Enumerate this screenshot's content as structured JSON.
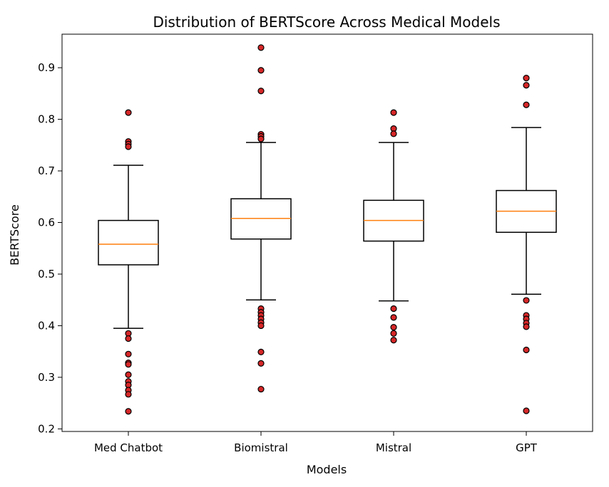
{
  "chart_data": {
    "type": "box",
    "title": "Distribution of BERTScore Across Medical Models",
    "xlabel": "Models",
    "ylabel": "BERTScore",
    "ylim": [
      0.195,
      0.965
    ],
    "yticks": [
      0.2,
      0.3,
      0.4,
      0.5,
      0.6,
      0.7,
      0.8,
      0.9
    ],
    "grid": false,
    "colors": {
      "box": "#000000",
      "median": "#ff7f0e",
      "outlier_fill": "#d62728",
      "outlier_edge": "#000000"
    },
    "categories": [
      "Med Chatbot",
      "Biomistral",
      "Mistral",
      "GPT"
    ],
    "series": [
      {
        "whisker_low": 0.395,
        "q1": 0.518,
        "median": 0.558,
        "q3": 0.604,
        "whisker_high": 0.711,
        "outliers": [
          0.813,
          0.757,
          0.752,
          0.747,
          0.385,
          0.375,
          0.345,
          0.328,
          0.325,
          0.305,
          0.292,
          0.285,
          0.275,
          0.267,
          0.234
        ]
      },
      {
        "whisker_low": 0.45,
        "q1": 0.568,
        "median": 0.608,
        "q3": 0.646,
        "whisker_high": 0.755,
        "outliers": [
          0.939,
          0.895,
          0.855,
          0.771,
          0.767,
          0.762,
          0.433,
          0.426,
          0.42,
          0.413,
          0.406,
          0.4,
          0.349,
          0.327,
          0.277
        ]
      },
      {
        "whisker_low": 0.448,
        "q1": 0.564,
        "median": 0.604,
        "q3": 0.643,
        "whisker_high": 0.755,
        "outliers": [
          0.813,
          0.782,
          0.772,
          0.433,
          0.416,
          0.397,
          0.385,
          0.372
        ]
      },
      {
        "whisker_low": 0.461,
        "q1": 0.581,
        "median": 0.622,
        "q3": 0.662,
        "whisker_high": 0.784,
        "outliers": [
          0.88,
          0.866,
          0.828,
          0.449,
          0.42,
          0.413,
          0.405,
          0.398,
          0.353,
          0.235
        ]
      }
    ]
  }
}
